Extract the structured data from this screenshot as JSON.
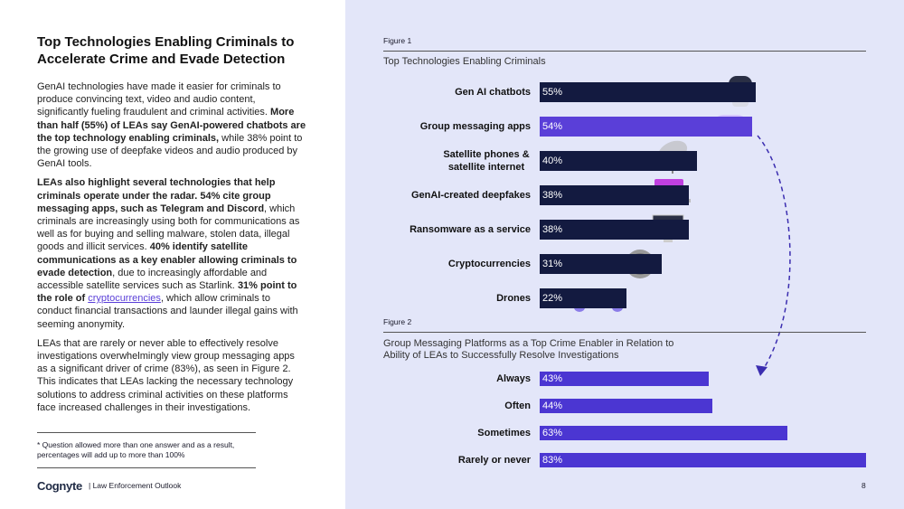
{
  "document": {
    "title": "Top Technologies Enabling Criminals to Accelerate Crime and Evade Detection",
    "paragraphs": [
      [
        {
          "text": "GenAI technologies have made it easier for criminals to produce convincing text, video and audio content, significantly fueling fraudulent and criminal activities. "
        },
        {
          "text": "More than half (55%) of LEAs say GenAI-powered chatbots are the top technology enabling criminals,",
          "bold": true
        },
        {
          "text": " while 38% point to the growing use of deepfake videos and audio produced by GenAI tools."
        }
      ],
      [
        {
          "text": "LEAs also highlight several technologies that help criminals operate under the radar. 54% cite group messaging apps, such as Telegram and Discord",
          "bold": true
        },
        {
          "text": ", which criminals are increasingly using both for communications as well as for buying and selling malware, stolen data, illegal goods and illicit services. "
        },
        {
          "text": "40% identify satellite communications as a key enabler allowing criminals to evade detection",
          "bold": true
        },
        {
          "text": ", due to increasingly affordable and accessible satellite services such as Starlink. "
        },
        {
          "text": "31% point to the role of ",
          "bold": true
        },
        {
          "text": "cryptocurrencies",
          "link": true
        },
        {
          "text": ", which allow criminals to conduct financial transactions and launder illegal gains with seeming anonymity."
        }
      ],
      [
        {
          "text": "LEAs that are rarely or never able to effectively resolve investigations overwhelmingly view group messaging apps as a significant driver of crime (83%), as seen in Figure 2. This indicates that LEAs lacking the necessary technology solutions to address criminal activities on these platforms face increased challenges in their investigations."
        }
      ]
    ],
    "footnote": "* Question allowed more than one answer and as a result, percentages will add up to more than 100%",
    "footer": {
      "brand": "Cognyte",
      "section": "| Law Enforcement Outlook",
      "page": "8"
    }
  },
  "chart_data": [
    {
      "type": "bar",
      "orientation": "horizontal",
      "figure_label": "Figure 1",
      "title": "Top Technologies Enabling Criminals",
      "categories": [
        "Gen AI chatbots",
        "Group messaging apps",
        [
          "Satellite phones &",
          "satellite internet"
        ],
        "GenAI-created deepfakes",
        "Ransomware as a service",
        "Cryptocurrencies",
        "Drones"
      ],
      "values": [
        55,
        54,
        40,
        38,
        38,
        31,
        22
      ],
      "value_labels": [
        "55%",
        "54%",
        "40%",
        "38%",
        "38%",
        "31%",
        "22%"
      ],
      "colors": [
        "#131a40",
        "#5a3fd8",
        "#131a40",
        "#131a40",
        "#131a40",
        "#131a40",
        "#131a40"
      ],
      "xlim": [
        0,
        83
      ]
    },
    {
      "type": "bar",
      "orientation": "horizontal",
      "figure_label": "Figure 2",
      "title": "Group Messaging Platforms as a Top Crime Enabler in Relation to Ability of LEAs to Successfully Resolve Investigations",
      "categories": [
        "Always",
        "Often",
        "Sometimes",
        "Rarely or never"
      ],
      "values": [
        43,
        44,
        63,
        83
      ],
      "value_labels": [
        "43%",
        "44%",
        "63%",
        "83%"
      ],
      "colors": [
        "#4b36d2",
        "#4b36d2",
        "#4b36d2",
        "#4b36d2"
      ],
      "xlim": [
        0,
        83
      ]
    }
  ]
}
